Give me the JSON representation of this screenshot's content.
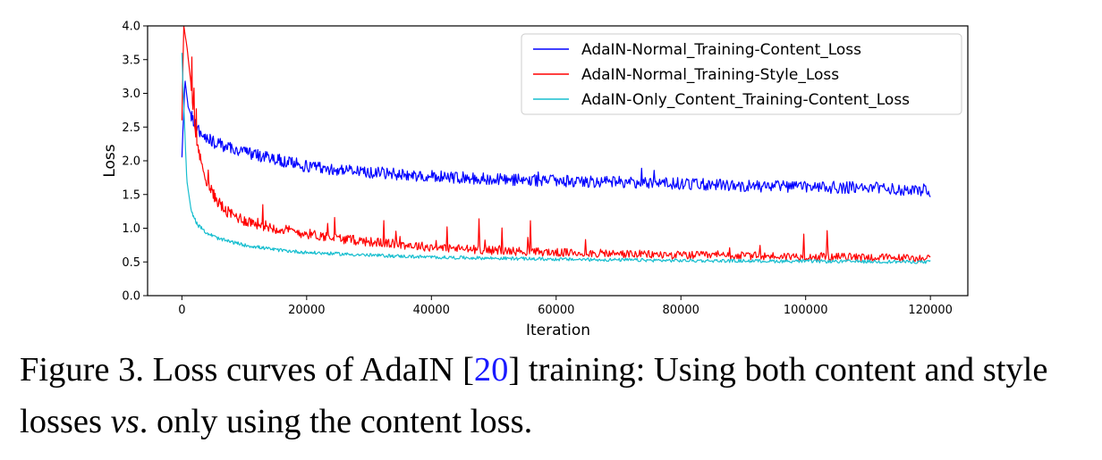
{
  "chart_data": {
    "type": "line",
    "xlabel": "Iteration",
    "ylabel": "Loss",
    "xlim": [
      -5500,
      126000
    ],
    "ylim": [
      0.0,
      4.0
    ],
    "x_ticks": [
      0,
      20000,
      40000,
      60000,
      80000,
      100000,
      120000
    ],
    "y_ticks": [
      0.0,
      0.5,
      1.0,
      1.5,
      2.0,
      2.5,
      3.0,
      3.5,
      4.0
    ],
    "x_tick_labels": [
      "0",
      "20000",
      "40000",
      "60000",
      "80000",
      "100000",
      "120000"
    ],
    "y_tick_labels": [
      "0.0",
      "0.5",
      "1.0",
      "1.5",
      "2.0",
      "2.5",
      "3.0",
      "3.5",
      "4.0"
    ],
    "grid": false,
    "legend_position": "upper right",
    "series": [
      {
        "name": "AdaIN-Normal_Training-Content_Loss",
        "color": "#0000ff",
        "x": [
          0,
          500,
          1000,
          2000,
          3000,
          5000,
          8000,
          12000,
          16000,
          20000,
          25000,
          30000,
          40000,
          50000,
          60000,
          70000,
          80000,
          90000,
          100000,
          110000,
          120000
        ],
        "y": [
          2.05,
          3.2,
          2.8,
          2.55,
          2.4,
          2.28,
          2.18,
          2.08,
          2.0,
          1.92,
          1.87,
          1.83,
          1.77,
          1.73,
          1.7,
          1.68,
          1.66,
          1.63,
          1.61,
          1.6,
          1.55
        ]
      },
      {
        "name": "AdaIN-Normal_Training-Style_Loss",
        "color": "#ff0000",
        "x": [
          0,
          300,
          800,
          1500,
          2000,
          3000,
          4000,
          5000,
          7000,
          10000,
          15000,
          20000,
          25000,
          30000,
          40000,
          50000,
          60000,
          70000,
          80000,
          90000,
          100000,
          110000,
          120000
        ],
        "y": [
          2.6,
          4.0,
          3.7,
          3.1,
          2.5,
          2.0,
          1.7,
          1.5,
          1.25,
          1.12,
          1.0,
          0.92,
          0.85,
          0.8,
          0.72,
          0.67,
          0.64,
          0.62,
          0.6,
          0.59,
          0.58,
          0.57,
          0.55
        ]
      },
      {
        "name": "AdaIN-Only_Content_Training-Content_Loss",
        "color": "#17becf",
        "x": [
          0,
          300,
          800,
          1500,
          2500,
          4000,
          6000,
          10000,
          15000,
          20000,
          30000,
          40000,
          60000,
          80000,
          100000,
          120000
        ],
        "y": [
          3.6,
          2.8,
          1.7,
          1.25,
          1.05,
          0.93,
          0.84,
          0.75,
          0.68,
          0.64,
          0.6,
          0.57,
          0.54,
          0.52,
          0.51,
          0.5
        ]
      }
    ]
  },
  "caption": {
    "part1": "Figure 3. Loss curves of AdaIN [",
    "ref": "20",
    "part2": "] training: Using both content and style losses ",
    "vs": "vs",
    "part3": ". only using the content loss."
  }
}
